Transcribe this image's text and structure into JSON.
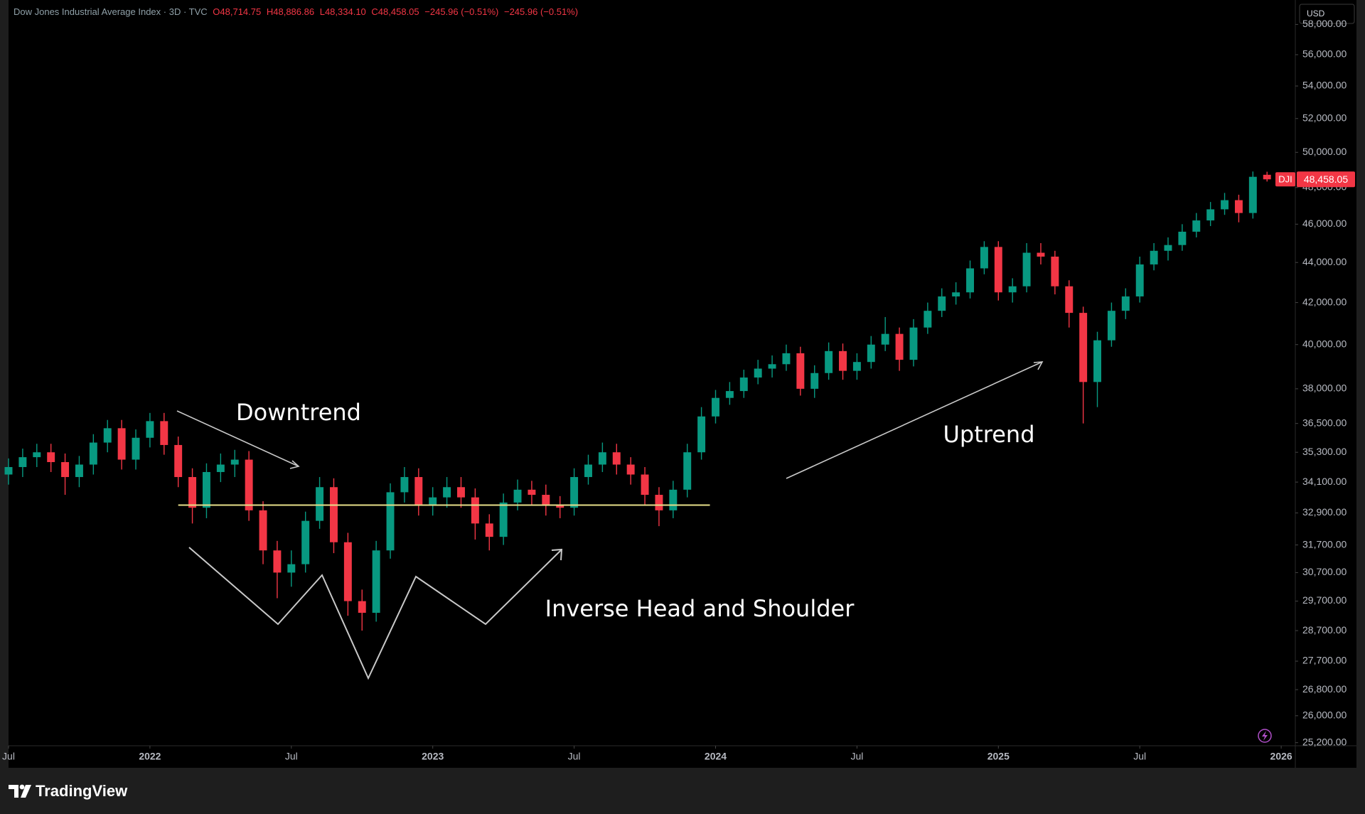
{
  "chart_data": {
    "type": "candlestick",
    "legend": {
      "title": "Dow Jones Industrial Average Index · 3D · TVC",
      "ohlc": [
        "O48,714.75",
        "H48,886.86",
        "L48,334.10",
        "C48,458.05"
      ],
      "change": [
        "−245.96 (−0.51%)",
        "−245.96 (−0.51%)"
      ]
    },
    "currency": "USD",
    "last_price": {
      "symbol": "DJI",
      "label": "48,458.05"
    },
    "annotations": [
      "Downtrend",
      "Uptrend",
      "Inverse Head and Shoulder"
    ],
    "brand": "TradingView",
    "up_color": "#089981",
    "down_color": "#f23645",
    "log_scale": true,
    "grid": false,
    "neckline": {
      "value": 33200,
      "x": [
        2022.1,
        2023.98
      ],
      "color": "#e8e08a"
    },
    "xlim": [
      2021.5,
      2026.05
    ],
    "ylim": [
      25110,
      59670
    ],
    "xticks": [
      {
        "value": 2021.5,
        "label": "Jul"
      },
      2022,
      {
        "value": 2022.5,
        "label": "Jul"
      },
      2023,
      {
        "value": 2023.5,
        "label": "Jul"
      },
      2024,
      {
        "value": 2024.5,
        "label": "Jul"
      },
      2025,
      {
        "value": 2025.5,
        "label": "Jul"
      },
      2026
    ],
    "yticks": [
      {
        "value": 58000,
        "label": "58,000.00"
      },
      {
        "value": 56000,
        "label": "56,000.00"
      },
      {
        "value": 54000,
        "label": "54,000.00"
      },
      {
        "value": 52000,
        "label": "52,000.00"
      },
      {
        "value": 50000,
        "label": "50,000.00"
      },
      {
        "value": 48000,
        "label": "48,000.00"
      },
      {
        "value": 46000,
        "label": "46,000.00"
      },
      {
        "value": 44000,
        "label": "44,000.00"
      },
      {
        "value": 42000,
        "label": "42,000.00"
      },
      {
        "value": 40000,
        "label": "40,000.00"
      },
      {
        "value": 38000,
        "label": "38,000.00"
      },
      {
        "value": 36500,
        "label": "36,500.00"
      },
      {
        "value": 35300,
        "label": "35,300.00"
      },
      {
        "value": 34100,
        "label": "34,100.00"
      },
      {
        "value": 32900,
        "label": "32,900.00"
      },
      {
        "value": 31700,
        "label": "31,700.00"
      },
      {
        "value": 30700,
        "label": "30,700.00"
      },
      {
        "value": 29700,
        "label": "29,700.00"
      },
      {
        "value": 28700,
        "label": "28,700.00"
      },
      {
        "value": 27700,
        "label": "27,700.00"
      },
      {
        "value": 26800,
        "label": "26,800.00"
      },
      {
        "value": 26000,
        "label": "26,000.00"
      },
      {
        "value": 25200,
        "label": "25,200.00"
      }
    ],
    "x": [
      2021.5,
      2021.55,
      2021.6,
      2021.65,
      2021.7,
      2021.75,
      2021.8,
      2021.85,
      2021.9,
      2021.95,
      2022,
      2022.05,
      2022.1,
      2022.15,
      2022.2,
      2022.25,
      2022.3,
      2022.35,
      2022.4,
      2022.45,
      2022.5,
      2022.55,
      2022.6,
      2022.65,
      2022.7,
      2022.75,
      2022.8,
      2022.85,
      2022.9,
      2022.95,
      2023,
      2023.05,
      2023.1,
      2023.15,
      2023.2,
      2023.25,
      2023.3,
      2023.35,
      2023.4,
      2023.45,
      2023.5,
      2023.55,
      2023.6,
      2023.65,
      2023.7,
      2023.75,
      2023.8,
      2023.85,
      2023.9,
      2023.95,
      2024,
      2024.05,
      2024.1,
      2024.15,
      2024.2,
      2024.25,
      2024.3,
      2024.35,
      2024.4,
      2024.45,
      2024.5,
      2024.55,
      2024.6,
      2024.65,
      2024.7,
      2024.75,
      2024.8,
      2024.85,
      2024.9,
      2024.95,
      2025,
      2025.05,
      2025.1,
      2025.15,
      2025.2,
      2025.25,
      2025.3,
      2025.35,
      2025.4,
      2025.45,
      2025.5,
      2025.55,
      2025.6,
      2025.65,
      2025.7,
      2025.75,
      2025.8,
      2025.85,
      2025.9,
      2025.95
    ],
    "open": [
      34400,
      34700,
      35100,
      35300,
      34900,
      34300,
      34800,
      35700,
      36300,
      35000,
      35900,
      36600,
      35600,
      34300,
      33100,
      34500,
      34800,
      35000,
      33000,
      31500,
      30700,
      31000,
      32600,
      33900,
      31800,
      29700,
      29300,
      31500,
      33700,
      34300,
      33200,
      33500,
      33900,
      33500,
      32500,
      32000,
      33300,
      33800,
      33600,
      33200,
      33100,
      34300,
      34800,
      35300,
      34800,
      34400,
      33600,
      33000,
      33800,
      35300,
      36800,
      37600,
      37900,
      38500,
      38900,
      39100,
      39600,
      38000,
      38700,
      39700,
      38800,
      39200,
      40000,
      40500,
      39300,
      40800,
      41600,
      42300,
      42500,
      43700,
      44800,
      42500,
      42800,
      44500,
      44300,
      42800,
      41500,
      38300,
      40200,
      41600,
      42300,
      43900,
      44600,
      44900,
      45600,
      46200,
      46800,
      47300,
      46600,
      48714.75
    ],
    "high": [
      35050,
      35450,
      35650,
      35650,
      35250,
      35150,
      36050,
      36650,
      36650,
      36250,
      36950,
      36950,
      35950,
      34650,
      34850,
      35250,
      35400,
      35350,
      33350,
      31850,
      31500,
      32950,
      34300,
      34250,
      32150,
      30100,
      31850,
      34050,
      34700,
      34650,
      33900,
      34300,
      34300,
      33850,
      32850,
      33650,
      34200,
      34150,
      34000,
      33550,
      34650,
      35200,
      35700,
      35650,
      35100,
      34700,
      33900,
      34150,
      35650,
      37200,
      37950,
      38300,
      38850,
      39300,
      39500,
      40000,
      39900,
      39050,
      40100,
      40050,
      39600,
      40400,
      41300,
      40800,
      41200,
      42000,
      42700,
      43000,
      44100,
      45100,
      45100,
      43200,
      45000,
      45000,
      44600,
      43100,
      41800,
      40600,
      42000,
      42700,
      44300,
      45000,
      45300,
      46000,
      46600,
      47200,
      47700,
      47600,
      48900,
      48886.86
    ],
    "low": [
      34000,
      34300,
      34700,
      34500,
      33600,
      33900,
      34400,
      35300,
      34600,
      34600,
      35500,
      35200,
      33900,
      32500,
      32700,
      34100,
      34300,
      32600,
      31000,
      29800,
      30200,
      30700,
      32300,
      31400,
      29200,
      28700,
      29000,
      31200,
      33300,
      32800,
      32800,
      33100,
      33100,
      31900,
      31500,
      31700,
      33000,
      33200,
      32800,
      32700,
      32800,
      34000,
      34500,
      34400,
      34000,
      33200,
      32400,
      32700,
      33500,
      35000,
      36500,
      37300,
      37600,
      38200,
      38500,
      38800,
      37700,
      37600,
      38400,
      38400,
      38400,
      38900,
      39700,
      38800,
      39000,
      40500,
      41300,
      41900,
      42200,
      43400,
      42100,
      42000,
      42500,
      43900,
      42400,
      40800,
      36500,
      37200,
      39900,
      41200,
      42000,
      43600,
      44100,
      44600,
      45300,
      45900,
      46500,
      46100,
      46300,
      48334.1
    ],
    "close": [
      34700,
      35100,
      35300,
      34900,
      34300,
      34800,
      35700,
      36300,
      35000,
      35900,
      36600,
      35600,
      34300,
      33100,
      34500,
      34800,
      35000,
      33000,
      31500,
      30700,
      31000,
      32600,
      33900,
      31800,
      29700,
      29300,
      31500,
      33700,
      34300,
      33200,
      33500,
      33900,
      33500,
      32500,
      32000,
      33300,
      33800,
      33600,
      33200,
      33100,
      34300,
      34800,
      35300,
      34800,
      34400,
      33600,
      33000,
      33800,
      35300,
      36800,
      37600,
      37900,
      38500,
      38900,
      39100,
      39600,
      38000,
      38700,
      39700,
      38800,
      39200,
      40000,
      40500,
      39300,
      40800,
      41600,
      42300,
      42500,
      43700,
      44800,
      42500,
      42800,
      44500,
      44300,
      42800,
      41500,
      38300,
      40200,
      41600,
      42300,
      43900,
      44600,
      44900,
      45600,
      46200,
      46800,
      47300,
      46600,
      48600,
      48458.05
    ]
  }
}
